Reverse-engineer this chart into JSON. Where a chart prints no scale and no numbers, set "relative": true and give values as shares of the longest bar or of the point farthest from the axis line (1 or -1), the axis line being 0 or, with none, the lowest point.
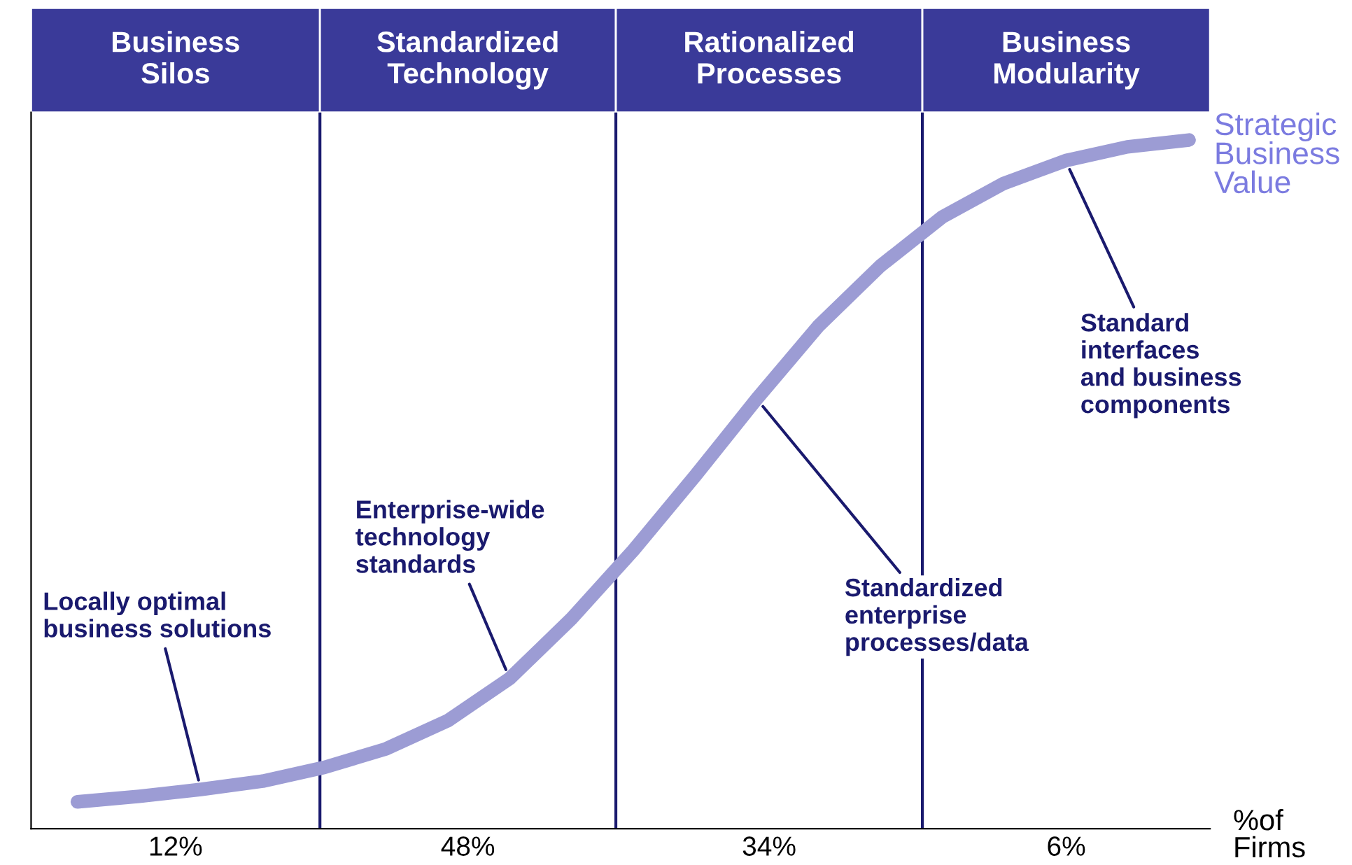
{
  "chart_data": {
    "type": "line",
    "relative": true,
    "ylabel": "Strategic Business Value",
    "xlabel": "%of Firms",
    "grid": false,
    "marker": "none",
    "line_style": "solid",
    "categories": [
      null,
      null,
      null,
      null,
      null,
      null,
      null,
      null,
      null,
      null,
      null,
      null,
      null,
      null,
      null,
      null,
      null,
      null,
      null
    ],
    "series": [
      {
        "color": "#9c9cd4",
        "values": [
          0.039,
          0.047,
          0.057,
          0.069,
          0.089,
          0.116,
          0.157,
          0.218,
          0.305,
          0.404,
          0.512,
          0.624,
          0.73,
          0.817,
          0.888,
          0.937,
          0.97,
          0.99,
          1
        ]
      }
    ],
    "annotations": [
      "Business\nSilos",
      "Standardized\nTechnology",
      "Rationalized\nProcesses",
      "Business\nModularity",
      "12%",
      "48%",
      "34%",
      "6%",
      "Locally optimal\nbusiness solutions",
      "Enterprise-wide\ntechnology\nstandards",
      "Standardized\nenterprise\nprocesses/data",
      "Standard\ninterfaces\nand business\ncomponents"
    ]
  }
}
